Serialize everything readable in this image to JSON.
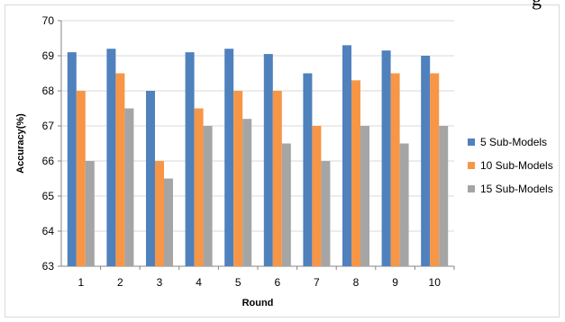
{
  "chart_data": {
    "type": "bar",
    "categories": [
      "1",
      "2",
      "3",
      "4",
      "5",
      "6",
      "7",
      "8",
      "9",
      "10"
    ],
    "series": [
      {
        "name": "5 Sub-Models",
        "color": "#4f81bd",
        "values": [
          69.1,
          69.2,
          68.0,
          69.1,
          69.2,
          69.05,
          68.5,
          69.3,
          69.15,
          69.0
        ]
      },
      {
        "name": "10 Sub-Models",
        "color": "#f79646",
        "values": [
          68.0,
          68.5,
          66.0,
          67.5,
          68.0,
          68.0,
          67.0,
          68.3,
          68.5,
          68.5
        ]
      },
      {
        "name": "15 Sub-Models",
        "color": "#a5a5a5",
        "values": [
          66.0,
          67.5,
          65.5,
          67.0,
          67.2,
          66.5,
          66.0,
          67.0,
          66.5,
          67.0
        ]
      }
    ],
    "xlabel": "Round",
    "ylabel": "Accuracy(%)",
    "ylim": [
      63,
      70
    ],
    "yticks": [
      "63",
      "64",
      "65",
      "66",
      "67",
      "68",
      "69",
      "70"
    ],
    "grid": true,
    "legend_position": "right"
  },
  "fragment_text": "g"
}
